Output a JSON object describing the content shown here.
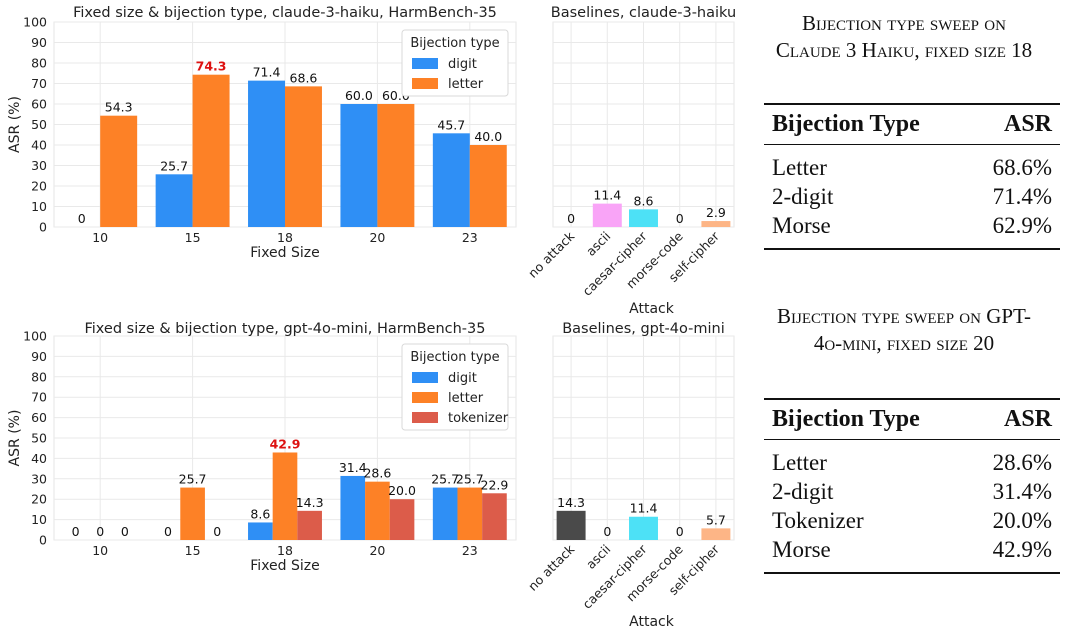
{
  "chart_data": [
    {
      "type": "bar",
      "title": "Fixed size & bijection type, claude-3-haiku, HarmBench-35",
      "xlabel": "Fixed Size",
      "ylabel": "ASR (%)",
      "ylim": [
        0,
        100
      ],
      "yticks": [
        0,
        10,
        20,
        30,
        40,
        50,
        60,
        70,
        80,
        90,
        100
      ],
      "categories": [
        "10",
        "15",
        "18",
        "20",
        "23"
      ],
      "legend_title": "Bijection type",
      "legend_position": "top-right",
      "grid": true,
      "highlight": {
        "category": "15",
        "series": "letter",
        "color": "#dd1111"
      },
      "series": [
        {
          "name": "digit",
          "color": "#2f8ff5",
          "values": [
            0,
            25.7,
            71.4,
            60.0,
            45.7
          ],
          "labels": [
            "0",
            "25.7",
            "71.4",
            "60.0",
            "45.7"
          ]
        },
        {
          "name": "letter",
          "color": "#fd8126",
          "values": [
            54.3,
            74.3,
            68.6,
            60.0,
            40.0
          ],
          "labels": [
            "54.3",
            "74.3",
            "68.6",
            "60.0",
            "40.0"
          ]
        }
      ]
    },
    {
      "type": "bar",
      "title": "Baselines, claude-3-haiku",
      "xlabel": "Attack",
      "ylabel": "",
      "ylim": [
        0,
        100
      ],
      "grid": true,
      "categories": [
        "no attack",
        "ascii",
        "caesar-cipher",
        "morse-code",
        "self-cipher"
      ],
      "colors": [
        "#4a4a4a",
        "#f9a4f7",
        "#4de1f6",
        "#b0b0b0",
        "#fdb586"
      ],
      "values": [
        0,
        11.4,
        8.6,
        0,
        2.9
      ],
      "labels": [
        "0",
        "11.4",
        "8.6",
        "0",
        "2.9"
      ]
    },
    {
      "type": "bar",
      "title": "Fixed size & bijection type, gpt-4o-mini, HarmBench-35",
      "xlabel": "Fixed Size",
      "ylabel": "ASR (%)",
      "ylim": [
        0,
        100
      ],
      "yticks": [
        0,
        10,
        20,
        30,
        40,
        50,
        60,
        70,
        80,
        90,
        100
      ],
      "categories": [
        "10",
        "15",
        "18",
        "20",
        "23"
      ],
      "legend_title": "Bijection type",
      "legend_position": "top-right",
      "grid": true,
      "highlight": {
        "category": "18",
        "series": "letter",
        "color": "#dd1111"
      },
      "series": [
        {
          "name": "digit",
          "color": "#2f8ff5",
          "values": [
            0,
            0,
            8.6,
            31.4,
            25.7
          ],
          "labels": [
            "0",
            "0",
            "8.6",
            "31.4",
            "25.7"
          ]
        },
        {
          "name": "letter",
          "color": "#fd8126",
          "values": [
            0,
            25.7,
            42.9,
            28.6,
            25.7
          ],
          "labels": [
            "0",
            "25.7",
            "42.9",
            "28.6",
            "25.7"
          ]
        },
        {
          "name": "tokenizer",
          "color": "#dc5c4a",
          "values": [
            0,
            0,
            14.3,
            20.0,
            22.9
          ],
          "labels": [
            "0",
            "0",
            "14.3",
            "20.0",
            "22.9"
          ]
        }
      ]
    },
    {
      "type": "bar",
      "title": "Baselines, gpt-4o-mini",
      "xlabel": "Attack",
      "ylabel": "",
      "ylim": [
        0,
        100
      ],
      "grid": true,
      "categories": [
        "no attack",
        "ascii",
        "caesar-cipher",
        "morse-code",
        "self-cipher"
      ],
      "colors": [
        "#4a4a4a",
        "#f9a4f7",
        "#4de1f6",
        "#b0b0b0",
        "#fdb586"
      ],
      "values": [
        14.3,
        0,
        11.4,
        0,
        5.7
      ],
      "labels": [
        "14.3",
        "0",
        "11.4",
        "0",
        "5.7"
      ]
    }
  ],
  "tables": [
    {
      "caption": "Bijection type sweep on Claude 3 Haiku, fixed size 18",
      "headers": [
        "Bijection Type",
        "ASR"
      ],
      "rows": [
        {
          "type": "Letter",
          "asr": "68.6%"
        },
        {
          "type": "2-digit",
          "asr": "71.4%"
        },
        {
          "type": "Morse",
          "asr": "62.9%"
        }
      ]
    },
    {
      "caption": "Bijection type sweep on GPT-4o-mini, fixed size 20",
      "headers": [
        "Bijection Type",
        "ASR"
      ],
      "rows": [
        {
          "type": "Letter",
          "asr": "28.6%"
        },
        {
          "type": "2-digit",
          "asr": "31.4%"
        },
        {
          "type": "Tokenizer",
          "asr": "20.0%"
        },
        {
          "type": "Morse",
          "asr": "42.9%"
        }
      ]
    }
  ]
}
